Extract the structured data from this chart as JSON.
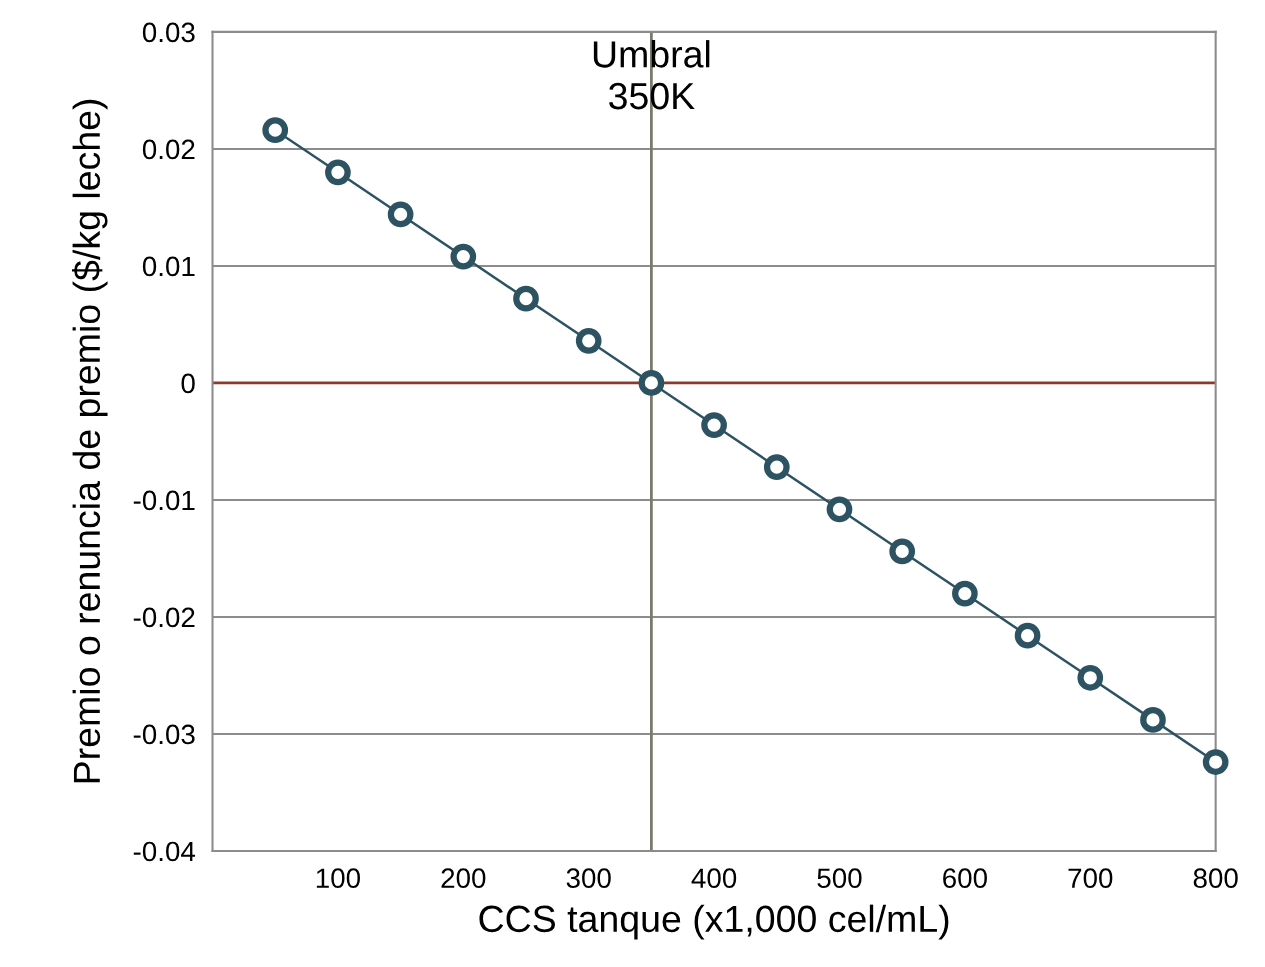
{
  "chart_data": {
    "type": "line",
    "xlabel": "CCS tanque (x1,000 cel/mL)",
    "ylabel": "Premio o renuncia de premio ($/kg leche)",
    "x": [
      50,
      100,
      150,
      200,
      250,
      300,
      350,
      400,
      450,
      500,
      550,
      600,
      650,
      700,
      750,
      800
    ],
    "series": [
      {
        "color": "#2d5362",
        "values": [
          0.0216,
          0.018,
          0.0144,
          0.0108,
          0.0072,
          0.0036,
          0,
          -0.0036,
          -0.0072,
          -0.0108,
          -0.0144,
          -0.018,
          -0.0216,
          -0.0252,
          -0.0288,
          -0.0324
        ]
      }
    ],
    "xlim": [
      0,
      800
    ],
    "ylim": [
      -0.04,
      0.03
    ],
    "xticks": [
      100,
      200,
      300,
      400,
      500,
      600,
      700,
      800
    ],
    "yticks": [
      -0.04,
      -0.03,
      -0.02,
      -0.01,
      0,
      0.01,
      0.02,
      0.03
    ],
    "ref_lines": [
      {
        "axis": "y",
        "value": 0,
        "color": "#8b3a2e"
      },
      {
        "axis": "x",
        "value": 350,
        "label": "Umbral\n350K",
        "color": "#7a7a6a"
      }
    ],
    "grid": "y",
    "marker": "circle"
  }
}
